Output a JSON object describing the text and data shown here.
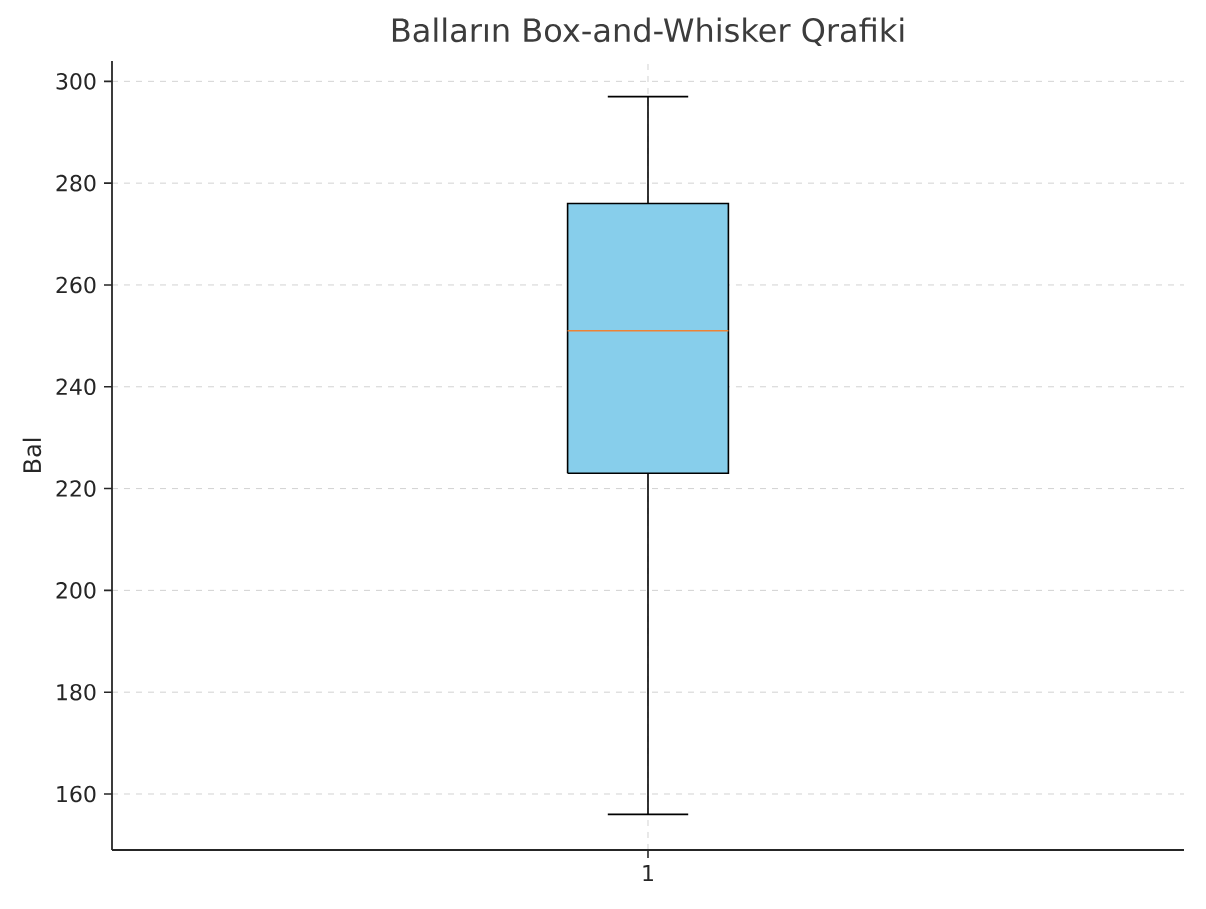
{
  "chart_data": {
    "type": "box",
    "title": "Balların Box-and-Whisker Qrafiki",
    "ylabel": "Bal",
    "categories": [
      "1"
    ],
    "boxes": [
      {
        "low": 156,
        "q1": 223,
        "median": 251,
        "q3": 276,
        "high": 297
      }
    ],
    "color": "#87ceeb",
    "ylim": [
      149,
      304
    ],
    "yticks": [
      160,
      180,
      200,
      220,
      240,
      260,
      280,
      300
    ],
    "grid": true
  }
}
